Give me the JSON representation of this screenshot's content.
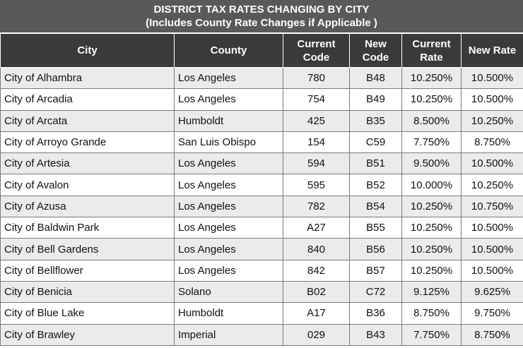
{
  "title": {
    "line1": "DISTRICT TAX RATES CHANGING BY CITY",
    "line2": "(Includes County Rate Changes if Applicable )"
  },
  "columns": [
    {
      "key": "city",
      "label": "City"
    },
    {
      "key": "county",
      "label": "County"
    },
    {
      "key": "current_code",
      "label": "Current Code"
    },
    {
      "key": "new_code",
      "label": "New Code"
    },
    {
      "key": "current_rate",
      "label": "Current Rate"
    },
    {
      "key": "new_rate",
      "label": "New Rate"
    }
  ],
  "rows": [
    {
      "city": "City of Alhambra",
      "county": "Los Angeles",
      "current_code": "780",
      "new_code": "B48",
      "current_rate": "10.250%",
      "new_rate": "10.500%"
    },
    {
      "city": "City of Arcadia",
      "county": "Los Angeles",
      "current_code": "754",
      "new_code": "B49",
      "current_rate": "10.250%",
      "new_rate": "10.500%"
    },
    {
      "city": "City of Arcata",
      "county": "Humboldt",
      "current_code": "425",
      "new_code": "B35",
      "current_rate": "8.500%",
      "new_rate": "10.250%"
    },
    {
      "city": "City of Arroyo Grande",
      "county": "San Luis Obispo",
      "current_code": "154",
      "new_code": "C59",
      "current_rate": "7.750%",
      "new_rate": "8.750%"
    },
    {
      "city": "City of Artesia",
      "county": "Los Angeles",
      "current_code": "594",
      "new_code": "B51",
      "current_rate": "9.500%",
      "new_rate": "10.500%"
    },
    {
      "city": "City of Avalon",
      "county": "Los Angeles",
      "current_code": "595",
      "new_code": "B52",
      "current_rate": "10.000%",
      "new_rate": "10.250%"
    },
    {
      "city": "City of Azusa",
      "county": "Los Angeles",
      "current_code": "782",
      "new_code": "B54",
      "current_rate": "10.250%",
      "new_rate": "10.750%"
    },
    {
      "city": "City of Baldwin Park",
      "county": "Los Angeles",
      "current_code": "A27",
      "new_code": "B55",
      "current_rate": "10.250%",
      "new_rate": "10.500%"
    },
    {
      "city": "City of Bell Gardens",
      "county": "Los Angeles",
      "current_code": "840",
      "new_code": "B56",
      "current_rate": "10.250%",
      "new_rate": "10.500%"
    },
    {
      "city": "City of Bellflower",
      "county": "Los Angeles",
      "current_code": "842",
      "new_code": "B57",
      "current_rate": "10.250%",
      "new_rate": "10.500%"
    },
    {
      "city": "City of Benicia",
      "county": "Solano",
      "current_code": "B02",
      "new_code": "C72",
      "current_rate": "9.125%",
      "new_rate": "9.625%"
    },
    {
      "city": "City of Blue Lake",
      "county": "Humboldt",
      "current_code": "A17",
      "new_code": "B36",
      "current_rate": "8.750%",
      "new_rate": "9.750%"
    },
    {
      "city": "City of Brawley",
      "county": "Imperial",
      "current_code": "029",
      "new_code": "B43",
      "current_rate": "7.750%",
      "new_rate": "8.750%"
    }
  ]
}
